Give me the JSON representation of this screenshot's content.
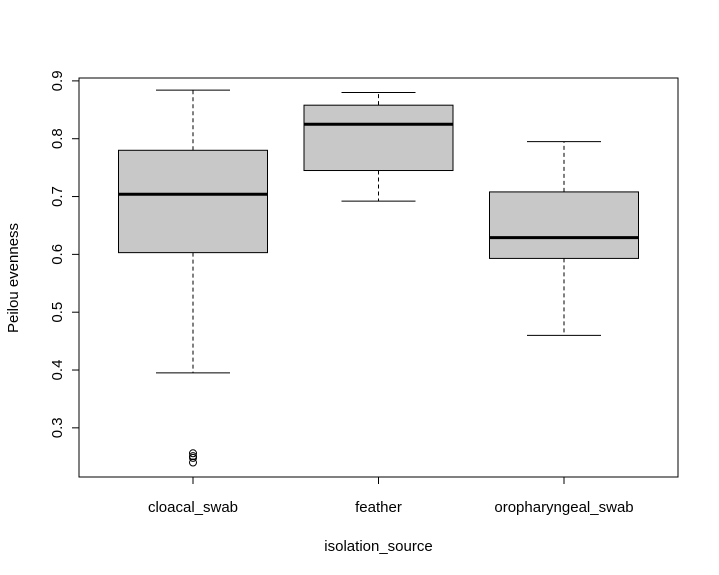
{
  "chart_data": {
    "type": "boxplot",
    "title": "",
    "xlabel": "isolation_source",
    "ylabel": "Peilou evenness",
    "ylim": [
      0.215,
      0.905
    ],
    "yticks": [
      0.3,
      0.4,
      0.5,
      0.6,
      0.7,
      0.8,
      0.9
    ],
    "grid": false,
    "box_color": "#c8c8c8",
    "categories": [
      "cloacal_swab",
      "feather",
      "oropharyngeal_swab"
    ],
    "boxes": [
      {
        "category": "cloacal_swab",
        "whisker_low": 0.395,
        "q1": 0.603,
        "median": 0.704,
        "q3": 0.78,
        "whisker_high": 0.884,
        "outliers": [
          0.256,
          0.251,
          0.248,
          0.24
        ]
      },
      {
        "category": "feather",
        "whisker_low": 0.692,
        "q1": 0.745,
        "median": 0.825,
        "q3": 0.858,
        "whisker_high": 0.88,
        "outliers": []
      },
      {
        "category": "oropharyngeal_swab",
        "whisker_low": 0.46,
        "q1": 0.593,
        "median": 0.629,
        "q3": 0.708,
        "whisker_high": 0.795,
        "outliers": []
      }
    ]
  }
}
